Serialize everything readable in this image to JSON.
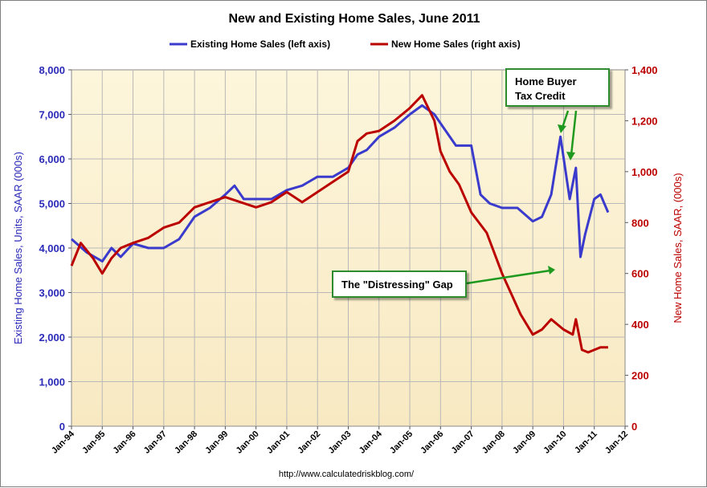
{
  "chart_data": {
    "type": "line",
    "title": "New and Existing Home Sales, June 2011",
    "ylabel_left": "Existing Home Sales, Units, SAAR (000s)",
    "ylabel_right": "New Home Sales, SAAR, (000s)",
    "xlabel": "",
    "source": "http://www.calculatedriskblog.com/",
    "legend_position": "top",
    "grid": true,
    "ylim_left": [
      0,
      8000
    ],
    "ylim_right": [
      0,
      1400
    ],
    "yticks_left": [
      "0",
      "1,000",
      "2,000",
      "3,000",
      "4,000",
      "5,000",
      "6,000",
      "7,000",
      "8,000"
    ],
    "yticks_right": [
      "0",
      "200",
      "400",
      "600",
      "800",
      "1,000",
      "1,200",
      "1,400"
    ],
    "xticks": [
      "Jan-94",
      "Jan-95",
      "Jan-96",
      "Jan-97",
      "Jan-98",
      "Jan-99",
      "Jan-00",
      "Jan-01",
      "Jan-02",
      "Jan-03",
      "Jan-04",
      "Jan-05",
      "Jan-06",
      "Jan-07",
      "Jan-08",
      "Jan-09",
      "Jan-10",
      "Jan-11",
      "Jan-12"
    ],
    "series": [
      {
        "name": "Existing Home Sales (left axis)",
        "axis": "left",
        "color": "#3a3acc",
        "x": [
          1994.0,
          1994.5,
          1995.0,
          1995.3,
          1995.6,
          1996.0,
          1996.5,
          1997.0,
          1997.5,
          1998.0,
          1998.5,
          1999.0,
          1999.3,
          1999.6,
          2000.0,
          2000.5,
          2001.0,
          2001.5,
          2002.0,
          2002.5,
          2003.0,
          2003.3,
          2003.6,
          2004.0,
          2004.5,
          2005.0,
          2005.4,
          2005.8,
          2006.0,
          2006.5,
          2007.0,
          2007.3,
          2007.6,
          2008.0,
          2008.5,
          2009.0,
          2009.3,
          2009.6,
          2009.9,
          2010.2,
          2010.4,
          2010.55,
          2010.7,
          2011.0,
          2011.2,
          2011.45
        ],
        "values": [
          4200,
          3900,
          3700,
          4000,
          3800,
          4100,
          4000,
          4000,
          4200,
          4700,
          4900,
          5200,
          5400,
          5100,
          5100,
          5100,
          5300,
          5400,
          5600,
          5600,
          5800,
          6100,
          6200,
          6500,
          6700,
          7000,
          7200,
          7000,
          6800,
          6300,
          6300,
          5200,
          5000,
          4900,
          4900,
          4600,
          4700,
          5200,
          6500,
          5100,
          5800,
          3800,
          4300,
          5100,
          5200,
          4800
        ]
      },
      {
        "name": "New Home Sales (right axis)",
        "axis": "right",
        "color": "#bb0000",
        "x": [
          1994.0,
          1994.3,
          1994.7,
          1995.0,
          1995.3,
          1995.6,
          1996.0,
          1996.5,
          1997.0,
          1997.5,
          1998.0,
          1998.5,
          1999.0,
          1999.5,
          2000.0,
          2000.5,
          2001.0,
          2001.5,
          2002.0,
          2002.5,
          2003.0,
          2003.3,
          2003.6,
          2004.0,
          2004.5,
          2005.0,
          2005.4,
          2005.8,
          2006.0,
          2006.3,
          2006.6,
          2007.0,
          2007.5,
          2008.0,
          2008.3,
          2008.6,
          2009.0,
          2009.3,
          2009.6,
          2010.0,
          2010.3,
          2010.4,
          2010.6,
          2010.8,
          2011.0,
          2011.2,
          2011.45
        ],
        "values": [
          630,
          720,
          660,
          600,
          660,
          700,
          720,
          740,
          780,
          800,
          860,
          880,
          900,
          880,
          860,
          880,
          920,
          880,
          920,
          960,
          1000,
          1120,
          1150,
          1160,
          1200,
          1250,
          1300,
          1200,
          1080,
          1000,
          950,
          840,
          760,
          600,
          520,
          440,
          360,
          380,
          420,
          380,
          360,
          420,
          300,
          290,
          300,
          310,
          310
        ]
      }
    ],
    "annotations": [
      {
        "text": "Home Buyer Tax Credit"
      },
      {
        "text": "The \"Distressing\" Gap"
      }
    ]
  }
}
